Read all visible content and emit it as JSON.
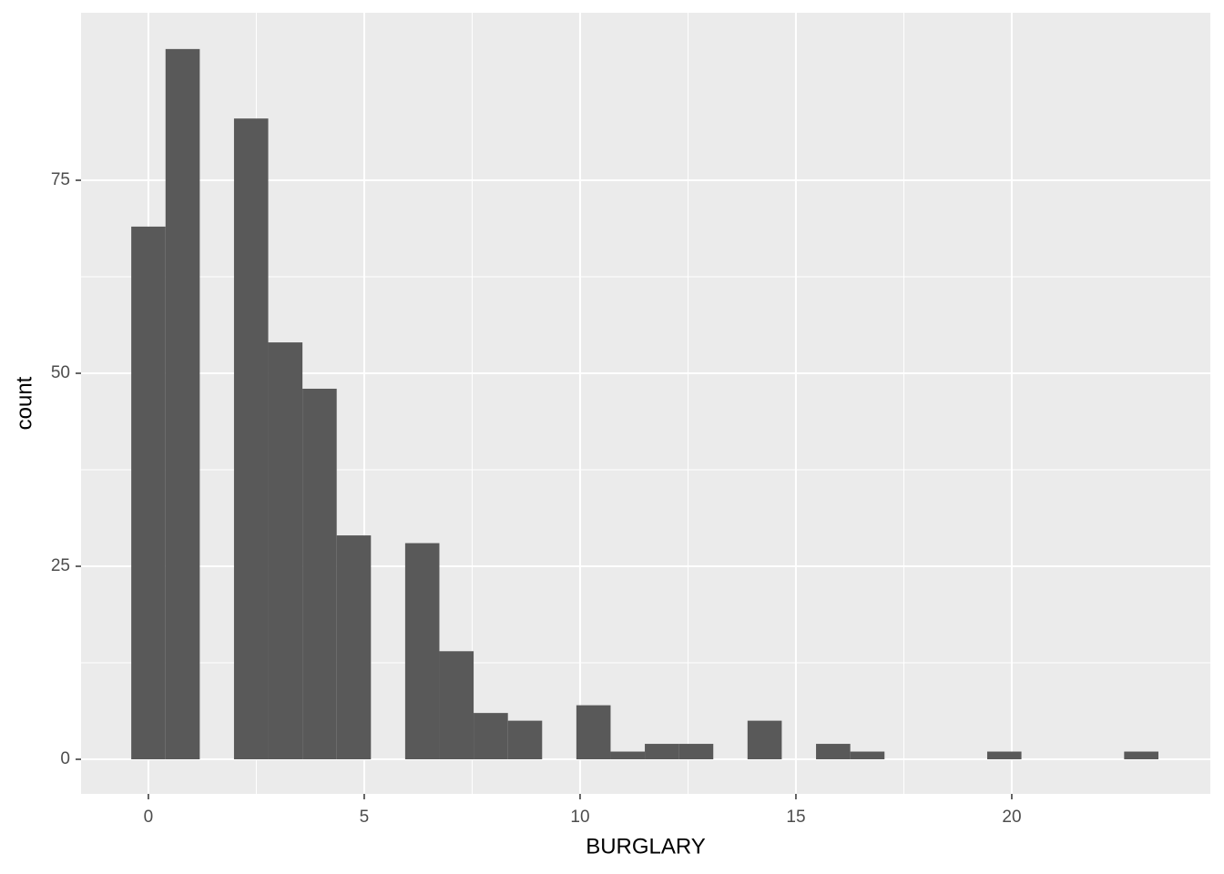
{
  "chart_data": {
    "type": "histogram",
    "x_label": "BURGLARY",
    "y_label": "count",
    "bins": [
      -0.397,
      0.397,
      1.19,
      1.983,
      2.776,
      3.569,
      4.362,
      5.155,
      5.948,
      6.741,
      7.534,
      8.328,
      9.121,
      9.914,
      10.707,
      11.5,
      12.293,
      13.086,
      13.879,
      14.672,
      15.466,
      16.259,
      17.052,
      17.845,
      18.638,
      19.431,
      20.224,
      21.017,
      21.81,
      22.603,
      23.397
    ],
    "values": [
      69,
      92,
      0,
      83,
      54,
      48,
      29,
      0,
      28,
      14,
      6,
      5,
      0,
      7,
      1,
      2,
      2,
      0,
      5,
      0,
      2,
      1,
      0,
      0,
      0,
      1,
      0,
      0,
      0,
      1
    ],
    "color": "#595959",
    "xlim": [
      -1.56,
      24.6
    ],
    "ylim": [
      -4.48,
      96.7
    ],
    "xticks": [
      0,
      5,
      10,
      15,
      20
    ],
    "yticks": [
      0,
      25,
      50,
      75
    ],
    "grid": true
  }
}
